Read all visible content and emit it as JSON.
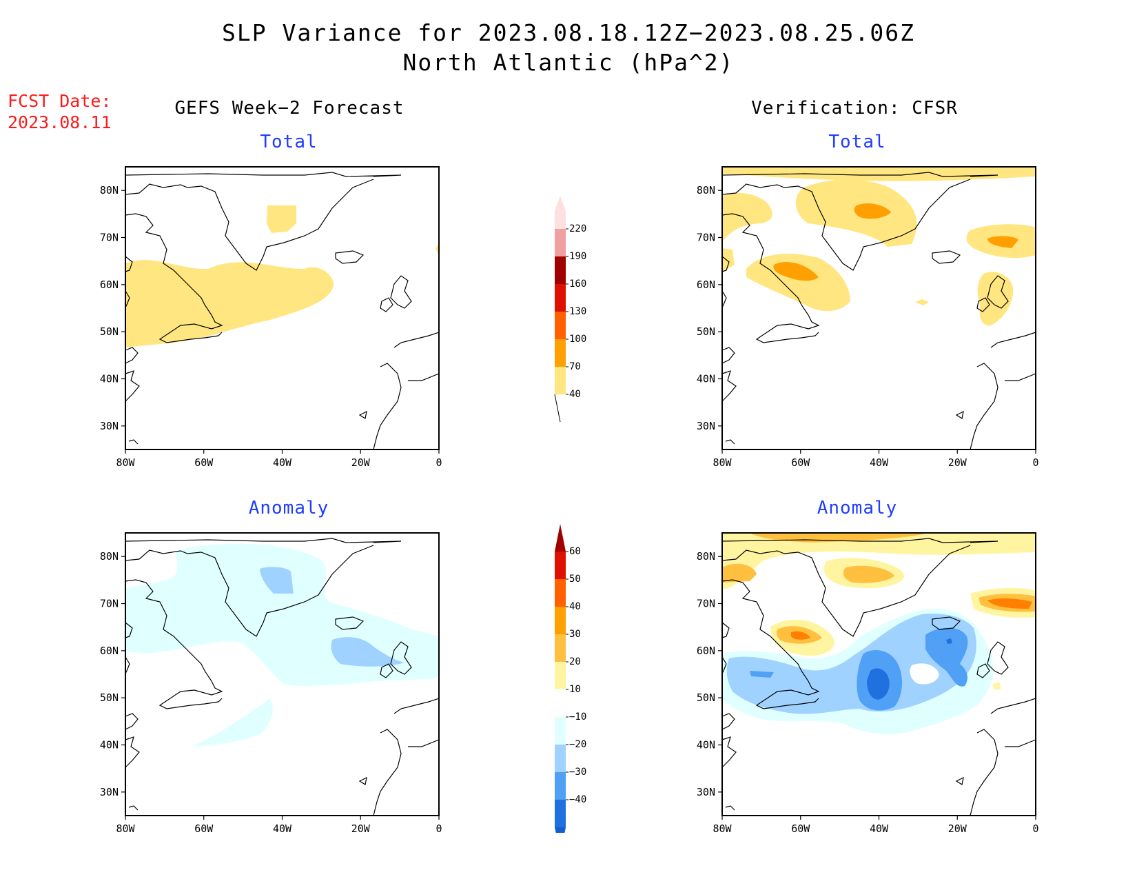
{
  "header": {
    "title_line1": "SLP Variance for 2023.08.18.12Z−2023.08.25.06Z",
    "title_line2": "North Atlantic (hPa^2)"
  },
  "fcst_label": {
    "line1": "FCST Date:",
    "line2": "2023.08.11"
  },
  "columns": {
    "left_title": "GEFS Week−2 Forecast",
    "right_title": "Verification: CFSR"
  },
  "rows": {
    "top_label": "Total",
    "bottom_label": "Anomaly"
  },
  "axes": {
    "lat_labels": [
      "80N",
      "70N",
      "60N",
      "50N",
      "40N",
      "30N"
    ],
    "lat_values": [
      80,
      70,
      60,
      50,
      40,
      30
    ],
    "lon_labels": [
      "80W",
      "60W",
      "40W",
      "20W",
      "0"
    ],
    "lon_values": [
      -80,
      -60,
      -40,
      -20,
      0
    ],
    "lat_range": [
      25,
      85
    ],
    "lon_range": [
      -80,
      0
    ]
  },
  "colorbar_total": {
    "levels": [
      "40",
      "70",
      "100",
      "130",
      "160",
      "190",
      "220"
    ],
    "colors": [
      "#ffe680",
      "#ffa000",
      "#ff6000",
      "#e01000",
      "#a00000",
      "#f0a0a0",
      "#ffe0e0"
    ]
  },
  "colorbar_anomaly": {
    "levels": [
      "60",
      "50",
      "40",
      "30",
      "20",
      "10",
      "−10",
      "−20",
      "−30",
      "−40"
    ],
    "colors_top_to_bottom": [
      "#a00000",
      "#e01000",
      "#ff6000",
      "#ffa000",
      "#ffc040",
      "#fff5a0",
      "#ffffff",
      "#e0ffff",
      "#a0d2ff",
      "#50a0f5",
      "#2070e0",
      "#1060d0"
    ]
  },
  "fill_colors": {
    "total_40": "#ffe680",
    "total_70": "#ffa000",
    "anom_pos10": "#fff5a0",
    "anom_pos20": "#ffc040",
    "anom_pos30": "#ff8000",
    "anom_pos40": "#ff5000",
    "anom_neg10": "#e0ffff",
    "anom_neg20": "#a0d2ff",
    "anom_neg30": "#50a0f5",
    "anom_neg40": "#1f60d8"
  }
}
